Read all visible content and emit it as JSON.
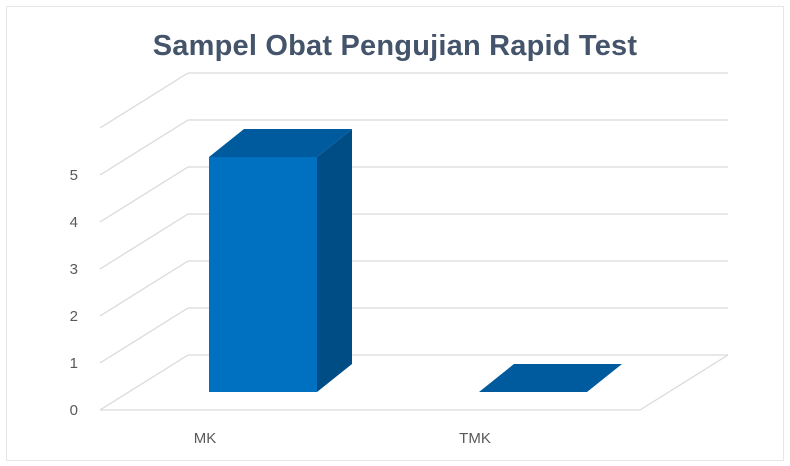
{
  "chart_data": {
    "type": "bar",
    "title": "Sampel Obat Pengujian Rapid Test",
    "categories": [
      "MK",
      "TMK"
    ],
    "values": [
      5,
      0
    ],
    "ylim": [
      0,
      5
    ],
    "yticks": [
      0,
      1,
      2,
      3,
      4,
      5
    ],
    "grid": true,
    "legend": "none",
    "three_d": true,
    "colors": {
      "bar_front": "#0070c0",
      "bar_side": "#004d86",
      "bar_top": "#005a9e",
      "grid": "#d9d9d9",
      "title": "#44546a",
      "tick_text": "#595959"
    }
  }
}
